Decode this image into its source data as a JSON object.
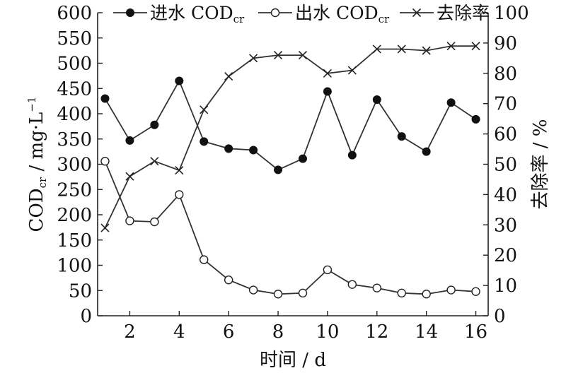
{
  "chart_data": {
    "type": "line",
    "x": [
      1,
      2,
      3,
      4,
      5,
      6,
      7,
      8,
      9,
      10,
      11,
      12,
      13,
      14,
      15,
      16
    ],
    "xlabel": "时间 / d",
    "xlim": [
      0.7,
      16.5
    ],
    "xticks": [
      2,
      4,
      6,
      8,
      10,
      12,
      14,
      16
    ],
    "y_left": {
      "label_main": "COD",
      "label_sub": "cr",
      "label_rest": " / mg·L",
      "label_sup": "−1",
      "lim": [
        0,
        600
      ],
      "ticks": [
        0,
        50,
        100,
        150,
        200,
        250,
        300,
        350,
        400,
        450,
        500,
        550,
        600
      ]
    },
    "y_right": {
      "label": "去除率 / %",
      "lim": [
        0,
        100
      ],
      "ticks": [
        0,
        10,
        20,
        30,
        40,
        50,
        60,
        70,
        80,
        90,
        100
      ]
    },
    "series": [
      {
        "name_main": "进水 COD",
        "name_sub": "cr",
        "marker": "filled-circle",
        "axis": "left",
        "values": [
          430,
          347,
          378,
          465,
          345,
          331,
          328,
          289,
          311,
          444,
          318,
          428,
          355,
          325,
          422,
          389
        ]
      },
      {
        "name_main": "出水 COD",
        "name_sub": "cr",
        "marker": "open-circle",
        "axis": "left",
        "values": [
          306,
          188,
          186,
          240,
          111,
          71,
          51,
          43,
          45,
          91,
          62,
          55,
          45,
          43,
          51,
          48
        ]
      },
      {
        "name_main": "去除率",
        "name_sub": "",
        "marker": "x",
        "axis": "right",
        "values": [
          29,
          46,
          51,
          48,
          68,
          79,
          85,
          86,
          86,
          80,
          81,
          88,
          88,
          87.5,
          89,
          89
        ]
      }
    ],
    "legend_position": "top",
    "grid": false
  },
  "colors": {
    "line": "#333333",
    "marker": "#111111",
    "background": "#ffffff"
  }
}
